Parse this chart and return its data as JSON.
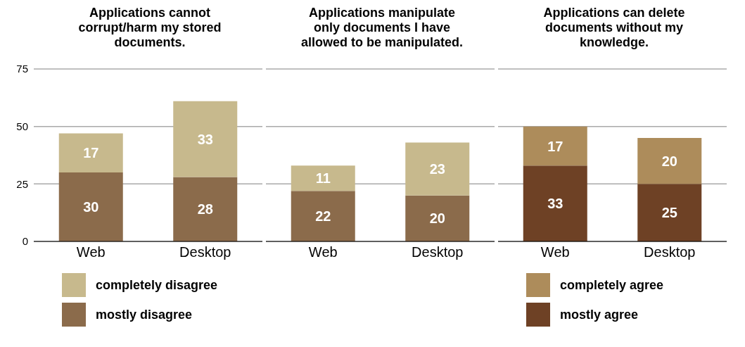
{
  "chart_data": [
    {
      "type": "bar",
      "stacked": true,
      "title": "Applications cannot corrupt/harm my stored documents.",
      "categories": [
        "Web",
        "Desktop"
      ],
      "ylim": [
        0,
        75
      ],
      "yticks": [
        0,
        25,
        50,
        75
      ],
      "grid": "y",
      "data_labels": true,
      "legend": "bottom",
      "series": [
        {
          "name": "mostly disagree",
          "color": "#8b6b4b",
          "values": [
            30,
            28
          ]
        },
        {
          "name": "completely disagree",
          "color": "#c7b98d",
          "values": [
            17,
            33
          ]
        }
      ]
    },
    {
      "type": "bar",
      "stacked": true,
      "title": "Applications manipulate only documents I have allowed to be manipulated.",
      "categories": [
        "Web",
        "Desktop"
      ],
      "ylim": [
        0,
        75
      ],
      "yticks": [
        0,
        25,
        50,
        75
      ],
      "grid": "y",
      "data_labels": true,
      "tick_labels": "x",
      "series": [
        {
          "color": "#8b6b4b",
          "values": [
            22,
            20
          ]
        },
        {
          "color": "#c7b98d",
          "values": [
            11,
            23
          ]
        }
      ]
    },
    {
      "type": "bar",
      "stacked": true,
      "title": "Applications can delete documents without my knowledge.",
      "categories": [
        "Web",
        "Desktop"
      ],
      "ylim": [
        0,
        75
      ],
      "yticks": [
        0,
        25,
        50,
        75
      ],
      "grid": "y",
      "data_labels": true,
      "tick_labels": "x",
      "legend": "bottom",
      "series": [
        {
          "name": "mostly agree",
          "color": "#6e4125",
          "values": [
            33,
            25
          ]
        },
        {
          "name": "completely agree",
          "color": "#ad8c5b",
          "values": [
            17,
            20
          ]
        }
      ]
    }
  ]
}
